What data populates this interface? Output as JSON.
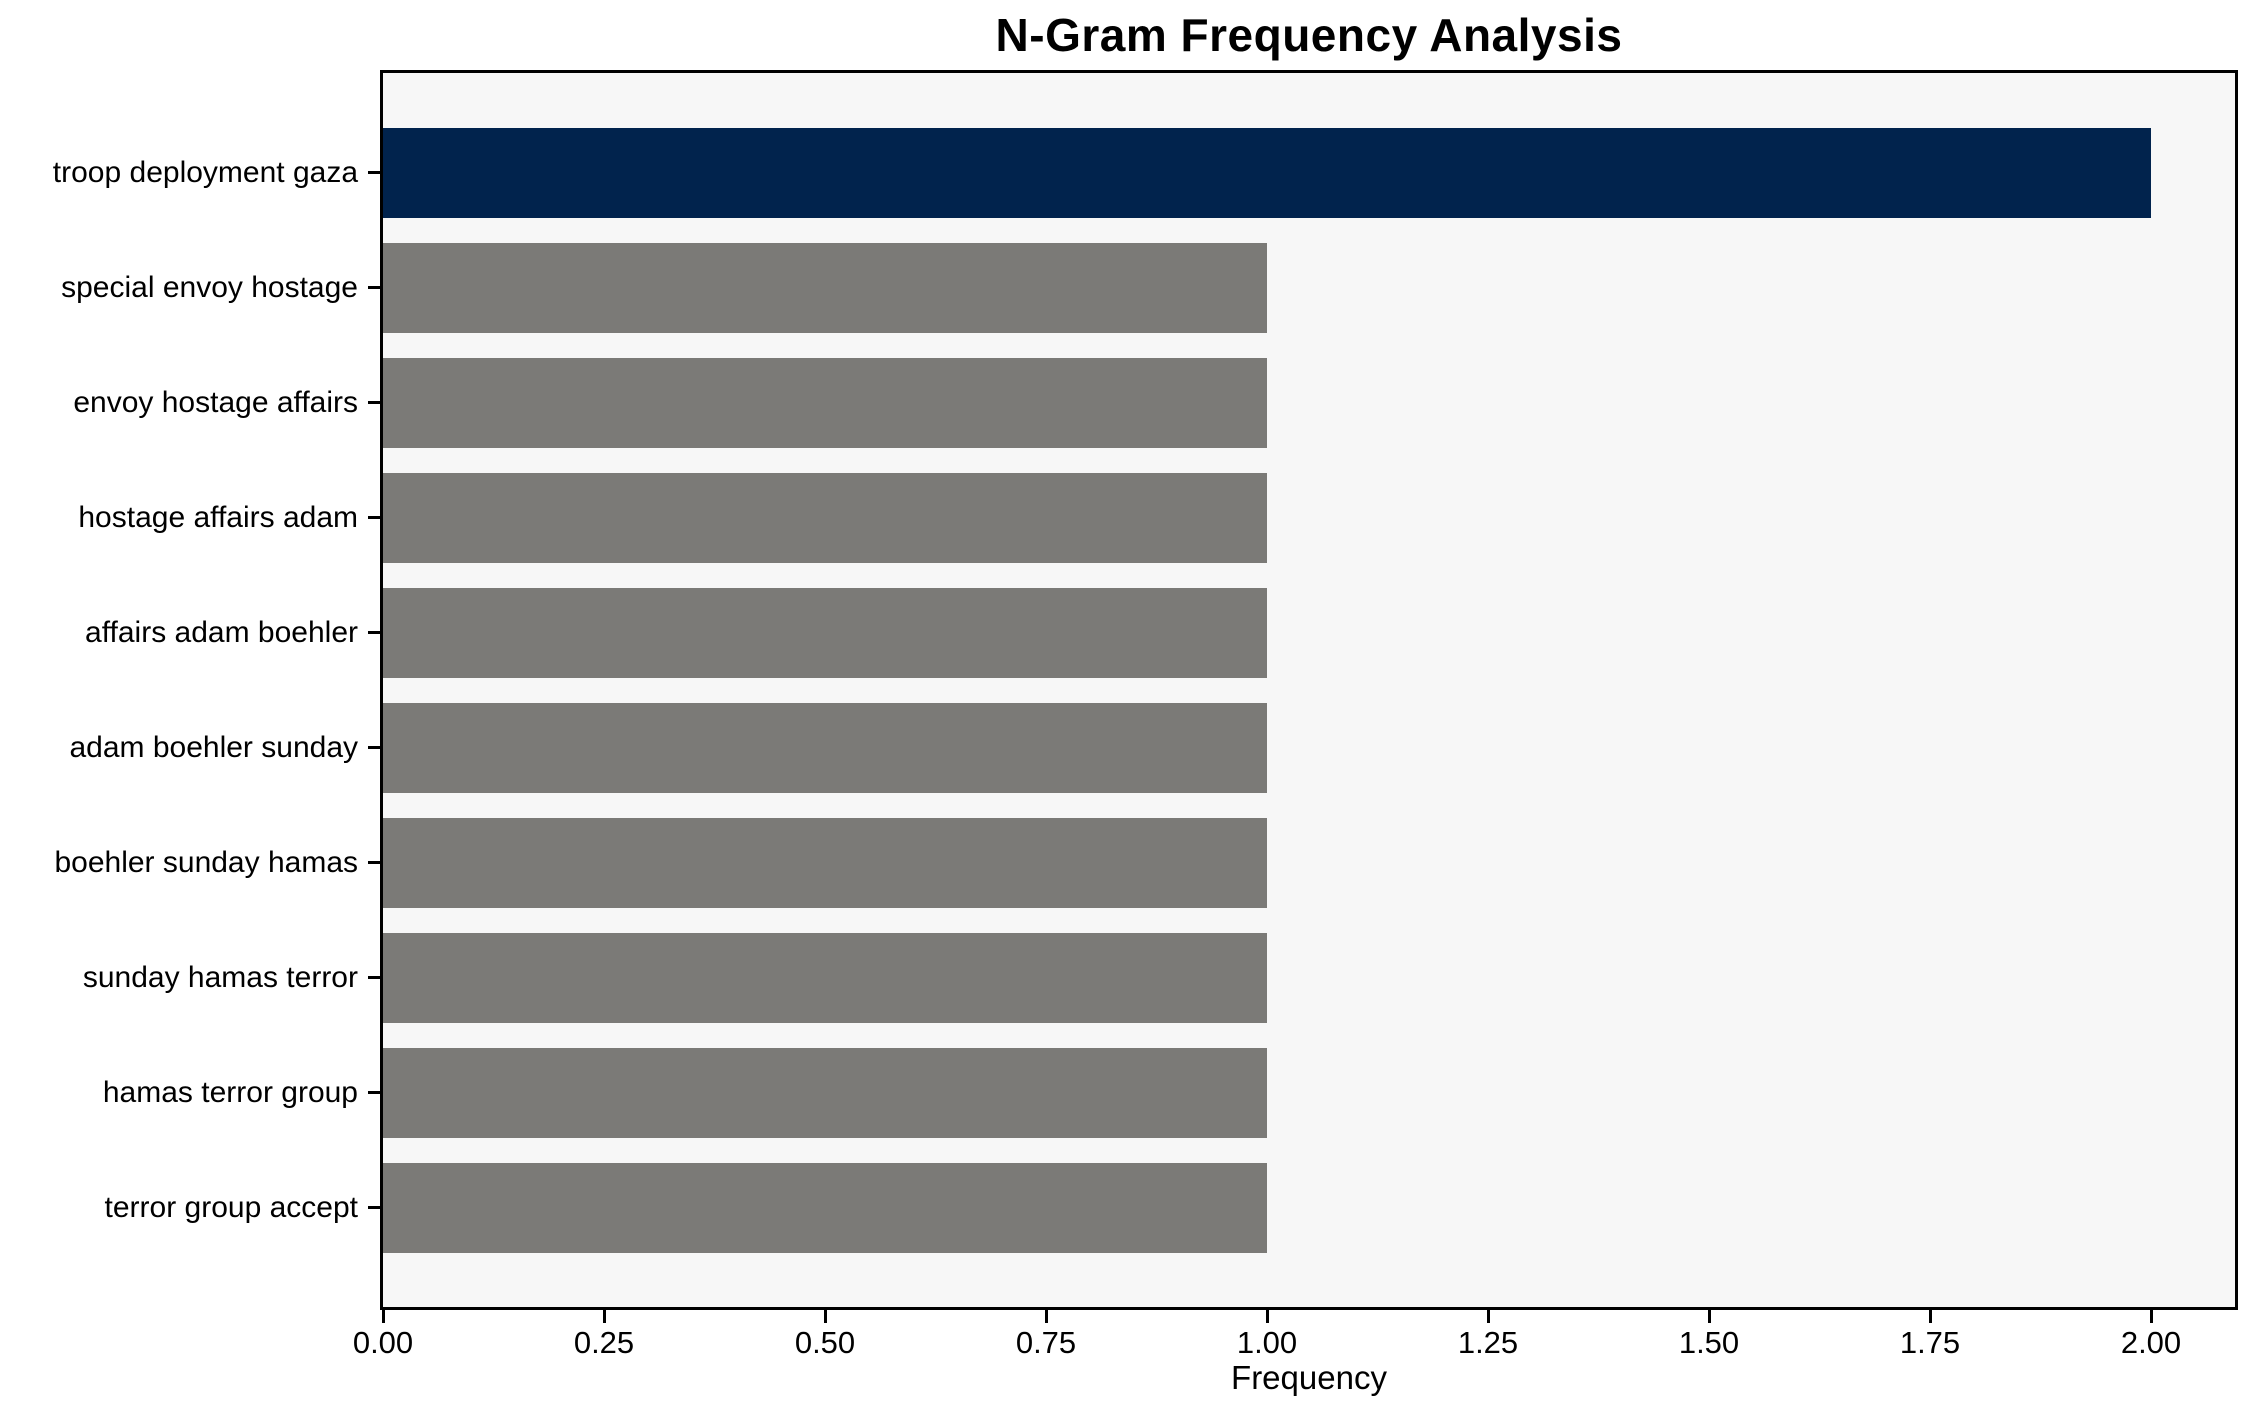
{
  "chart_data": {
    "type": "bar",
    "orientation": "horizontal",
    "title": "N-Gram Frequency Analysis",
    "xlabel": "Frequency",
    "ylabel": "",
    "categories": [
      "troop deployment gaza",
      "special envoy hostage",
      "envoy hostage affairs",
      "hostage affairs adam",
      "affairs adam boehler",
      "adam boehler sunday",
      "boehler sunday hamas",
      "sunday hamas terror",
      "hamas terror group",
      "terror group accept"
    ],
    "values": [
      2,
      1,
      1,
      1,
      1,
      1,
      1,
      1,
      1,
      1
    ],
    "bar_colors": [
      "#01234d",
      "#7b7a77",
      "#7b7a77",
      "#7b7a77",
      "#7b7a77",
      "#7b7a77",
      "#7b7a77",
      "#7b7a77",
      "#7b7a77",
      "#7b7a77"
    ],
    "xlim": [
      0,
      2.1
    ],
    "xtick_values": [
      0,
      0.25,
      0.5,
      0.75,
      1.0,
      1.25,
      1.5,
      1.75,
      2.0
    ],
    "xtick_labels": [
      "0.00",
      "0.25",
      "0.50",
      "0.75",
      "1.00",
      "1.25",
      "1.50",
      "1.75",
      "2.00"
    ],
    "grid": false,
    "legend": null,
    "plot_background": "#f7f7f7",
    "highlight_color": "#01234d",
    "default_bar_color": "#7b7a77"
  }
}
